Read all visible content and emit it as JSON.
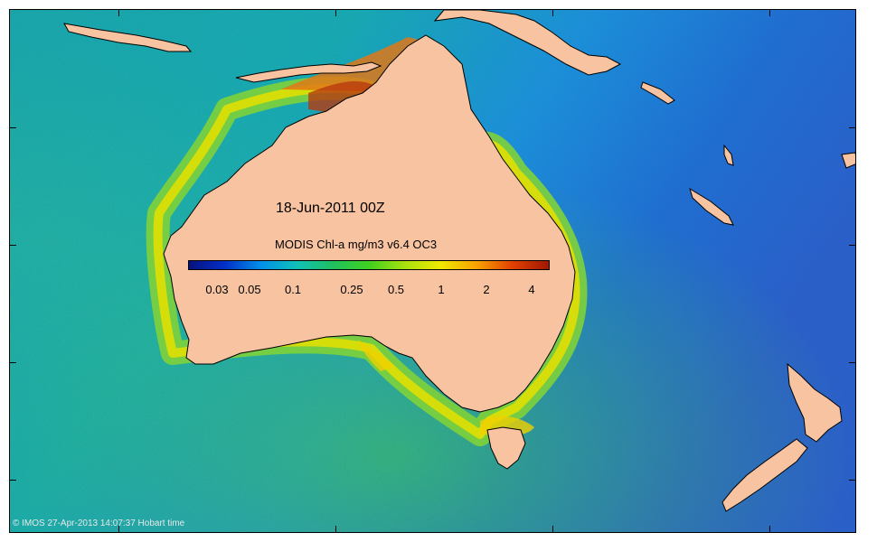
{
  "map": {
    "date_label": "18-Jun-2011 00Z",
    "product_label": "MODIS Chl-a mg/m3 v6.4 OC3",
    "credit": "© IMOS 27-Apr-2013 14:07:37 Hobart time",
    "land_color": "#f8c3a0",
    "colorbar": {
      "scale": "log",
      "range": [
        0.02,
        5
      ],
      "ticks": [
        "0.03",
        "0.05",
        "0.1",
        "0.25",
        "0.5",
        "1",
        "2",
        "4"
      ],
      "colors": [
        "#08127e",
        "#0030c8",
        "#0090e8",
        "#10c0b8",
        "#20c060",
        "#40d020",
        "#a8e010",
        "#f0e800",
        "#f8a000",
        "#e04000",
        "#a01800"
      ]
    }
  }
}
